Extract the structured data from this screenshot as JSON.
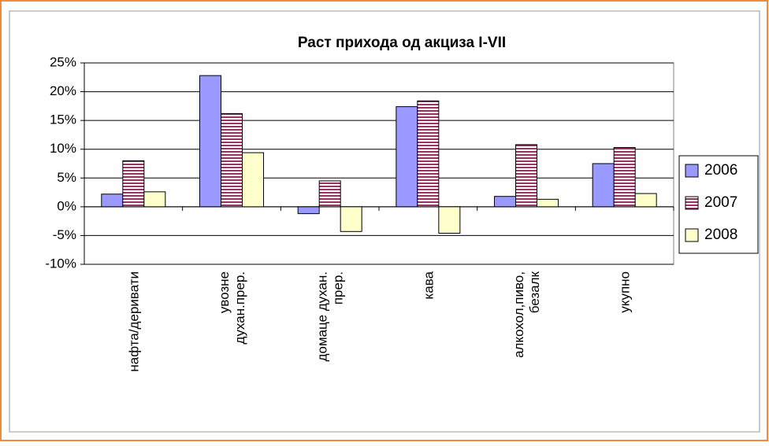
{
  "chart_data": {
    "type": "bar",
    "title": "Раст прихода од акциза I-VII",
    "categories": [
      [
        "нафта/деривати"
      ],
      [
        "увозне",
        "духан.прер."
      ],
      [
        "домаце духан.",
        "прер."
      ],
      [
        "кава"
      ],
      [
        "алкохол,пиво,",
        "безалк"
      ],
      [
        "укупно"
      ]
    ],
    "series": [
      {
        "name": "2006",
        "color": "#9999ff",
        "values": [
          2.2,
          22.8,
          -1.2,
          17.4,
          1.8,
          7.5
        ]
      },
      {
        "name": "2007",
        "color": "#993366",
        "values": [
          8.0,
          16.2,
          4.5,
          18.4,
          10.8,
          10.3
        ]
      },
      {
        "name": "2008",
        "color": "#ffffcc",
        "values": [
          2.6,
          9.4,
          -4.3,
          -4.6,
          1.3,
          2.3
        ]
      }
    ],
    "ylim": [
      -10,
      25
    ],
    "yticks": [
      {
        "value": -10,
        "label": "-10%"
      },
      {
        "value": -5,
        "label": "-5%"
      },
      {
        "value": 0,
        "label": "0%"
      },
      {
        "value": 5,
        "label": "5%"
      },
      {
        "value": 10,
        "label": "10%"
      },
      {
        "value": 15,
        "label": "15%"
      },
      {
        "value": 20,
        "label": "20%"
      },
      {
        "value": 25,
        "label": "25%"
      }
    ],
    "grid": true,
    "legend": "right"
  }
}
